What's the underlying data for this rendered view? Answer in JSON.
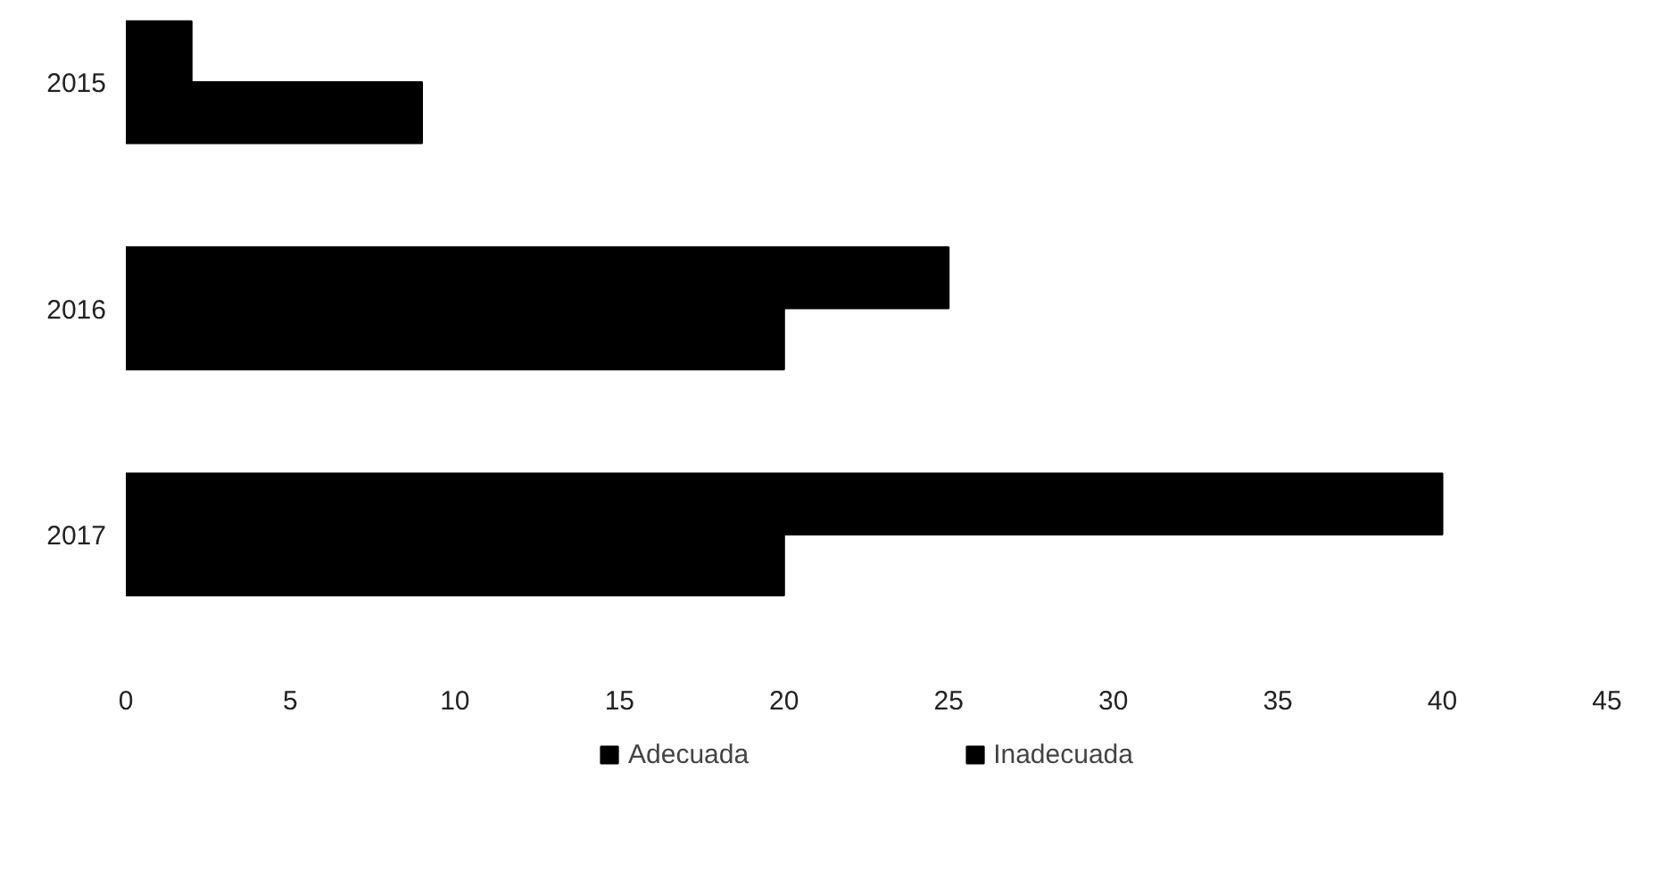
{
  "chart_data": {
    "type": "bar",
    "orientation": "horizontal",
    "categories": [
      "2015",
      "2016",
      "2017"
    ],
    "series": [
      {
        "name": "Adecuada",
        "color": "#000000",
        "values": [
          9,
          20,
          20
        ]
      },
      {
        "name": "Inadecuada",
        "color": "#000000",
        "values": [
          2,
          25,
          40
        ]
      }
    ],
    "xlim": [
      0,
      45
    ],
    "xticks": [
      0,
      5,
      10,
      15,
      20,
      25,
      30,
      35,
      40,
      45
    ],
    "grid": false,
    "legend": "bottom"
  }
}
